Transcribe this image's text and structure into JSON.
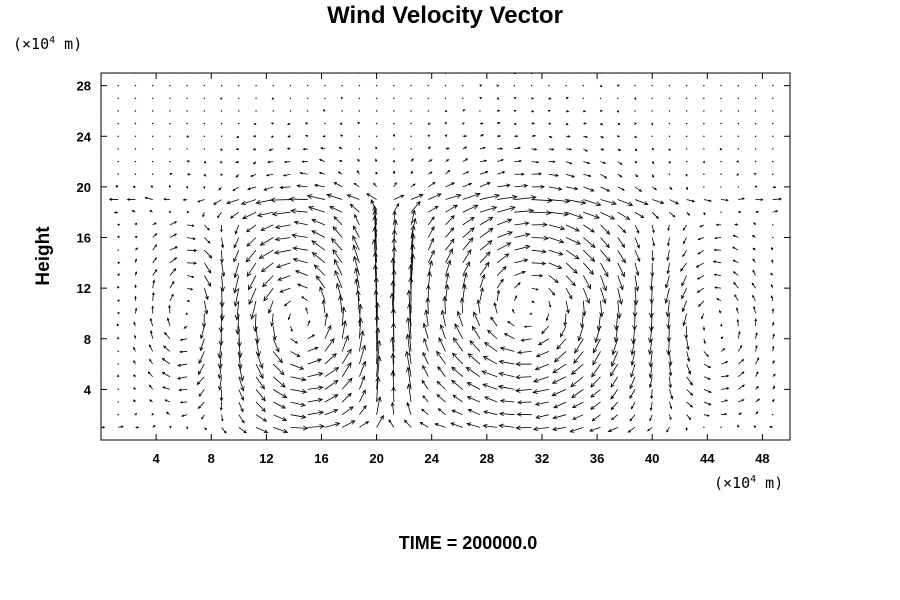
{
  "chart_data": {
    "type": "vector-field",
    "title": "Wind Velocity Vector",
    "ylabel": "Height",
    "y_unit_prefix": "(×10",
    "y_unit_exp": "4",
    "y_unit_suffix": " m)",
    "x_unit_prefix": "(×10",
    "x_unit_exp": "4",
    "x_unit_suffix": " m)",
    "xlim": [
      0,
      50
    ],
    "ylim": [
      0,
      29
    ],
    "x_ticks": [
      4,
      8,
      12,
      16,
      20,
      24,
      28,
      32,
      36,
      40,
      44,
      48
    ],
    "y_ticks": [
      4,
      8,
      12,
      16,
      20,
      24,
      28
    ],
    "x_tick_labels": [
      "4",
      "8",
      "12",
      "16",
      "20",
      "24",
      "28",
      "32",
      "36",
      "40",
      "44",
      "48"
    ],
    "y_tick_labels": [
      "4",
      "8",
      "12",
      "16",
      "20",
      "24",
      "28"
    ],
    "grid": false,
    "vector_color": "#000000",
    "vector_grid": {
      "x_start": 0,
      "x_step": 1.25,
      "nx": 40,
      "y_start": 0,
      "y_step": 1,
      "ny": 29
    },
    "circulation_cells": [
      {
        "center": [
          14.5,
          9.5
        ],
        "radius_x": 5.0,
        "radius_y": 8.5,
        "sense": "counterclockwise",
        "strength": 1.0
      },
      {
        "center": [
          31.0,
          10.5
        ],
        "radius_x": 8.0,
        "radius_y": 8.5,
        "sense": "clockwise",
        "strength": 1.0
      },
      {
        "center": [
          6.5,
          10.0
        ],
        "radius_x": 3.0,
        "radius_y": 7.0,
        "sense": "clockwise",
        "strength": 0.6
      },
      {
        "center": [
          44.0,
          9.0
        ],
        "radius_x": 4.0,
        "radius_y": 7.0,
        "sense": "counterclockwise",
        "strength": 0.5
      }
    ],
    "updraft_columns": [
      {
        "x": 20.0,
        "strength": 1.0
      },
      {
        "x": 22.0,
        "strength": 0.9
      }
    ],
    "annotation": "TIME = 200000.0"
  }
}
